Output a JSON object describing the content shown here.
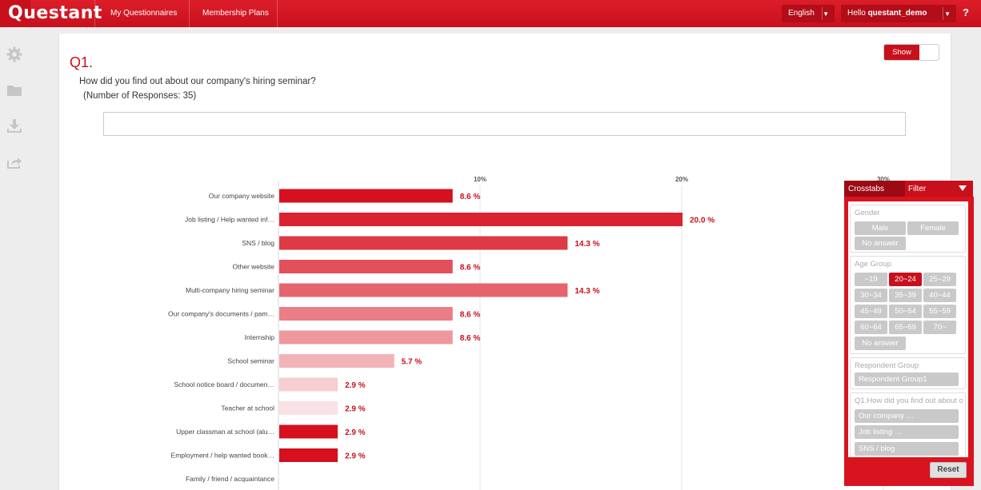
{
  "header": {
    "logo": "Questant",
    "nav": [
      "My Questionnaires",
      "Membership Plans"
    ],
    "language": "English",
    "greeting_prefix": "Hello",
    "username": "questant_demo",
    "help": "?"
  },
  "rail_icons": [
    "gear-icon",
    "folder-icon",
    "download-icon",
    "share-icon"
  ],
  "question": {
    "number": "Q1.",
    "text": "How did you find out about our company's hiring seminar?",
    "responses": "(Number of Responses: 35)",
    "show_label": "Show"
  },
  "chart_data": {
    "type": "bar",
    "orientation": "horizontal",
    "categories": [
      "Our company website",
      "Job listing / Help wanted inf…",
      "SNS / blog",
      "Other website",
      "Multi-company hiring seminar",
      "Our company's documents / pam…",
      "Internship",
      "School seminar",
      "School notice board / documen…",
      "Teacher at school",
      "Upper classman at school (alu…",
      "Employment / help wanted book…",
      "Family / friend / acquaintance"
    ],
    "values": [
      8.6,
      20.0,
      14.3,
      8.6,
      14.3,
      8.6,
      8.6,
      5.7,
      2.9,
      2.9,
      2.9,
      2.9,
      null
    ],
    "value_labels": [
      "8.6 %",
      "20.0 %",
      "14.3 %",
      "8.6 %",
      "14.3 %",
      "8.6 %",
      "8.6 %",
      "5.7 %",
      "2.9 %",
      "2.9 %",
      "2.9 %",
      "2.9 %",
      ""
    ],
    "colors": [
      "#d6101e",
      "#da2230",
      "#de3a46",
      "#e2505b",
      "#e6646e",
      "#ea7d85",
      "#ee979d",
      "#f2b3b7",
      "#f6cdd0",
      "#f9e2e3",
      "#d6101e",
      "#d6101e",
      "#d6101e"
    ],
    "ticks": [
      10,
      20,
      30
    ],
    "tick_labels": [
      "10%",
      "20%",
      "30%"
    ],
    "xlim": [
      0,
      30
    ],
    "grid": true,
    "value_color": "#c8101c"
  },
  "filter_panel": {
    "tabs": [
      "Crosstabs",
      "Filter"
    ],
    "groups": [
      {
        "label": "Gender",
        "options": [
          "Male",
          "Female",
          "No answer"
        ],
        "selected": []
      },
      {
        "label": "Age Group",
        "options": [
          "~19",
          "20~24",
          "25~29",
          "30~34",
          "35~39",
          "40~44",
          "45~49",
          "50~54",
          "55~59",
          "60~64",
          "65~69",
          "70~",
          "No answer"
        ],
        "selected": [
          "20~24"
        ]
      },
      {
        "label": "Respondent Group",
        "options": [
          "Respondent Group1"
        ],
        "selected": []
      },
      {
        "label": "Q1.How did you find out about o",
        "options": [
          "Our company …",
          "Job listing …",
          "SNS / blog"
        ],
        "selected": []
      }
    ],
    "reset_label": "Reset",
    "accent": "#c8101c"
  }
}
